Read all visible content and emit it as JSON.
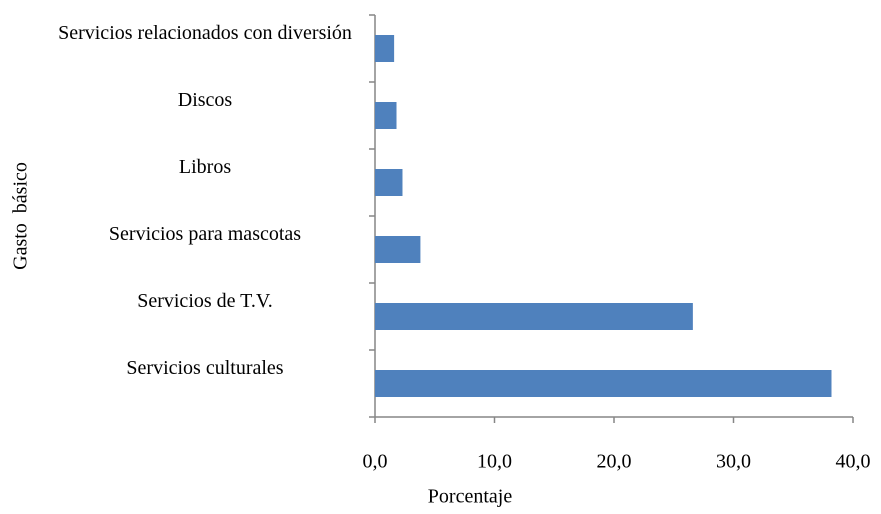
{
  "chart_data": {
    "type": "barh",
    "categories": [
      "Servicios relacionados con diversión",
      "Discos",
      "Libros",
      "Servicios para mascotas",
      "Servicios de T.V.",
      "Servicios culturales"
    ],
    "values": [
      1.6,
      1.8,
      2.3,
      3.8,
      26.6,
      38.2
    ],
    "color": "#4f81bd",
    "xlim": [
      0,
      40
    ],
    "xticks": [
      {
        "value": 0,
        "label": "0,0"
      },
      {
        "value": 10,
        "label": "10,0"
      },
      {
        "value": 20,
        "label": "20,0"
      },
      {
        "value": 30,
        "label": "30,0"
      },
      {
        "value": 40,
        "label": "40,0"
      }
    ],
    "x_label": "Porcentaje",
    "y_label": "Gasto  básico"
  }
}
